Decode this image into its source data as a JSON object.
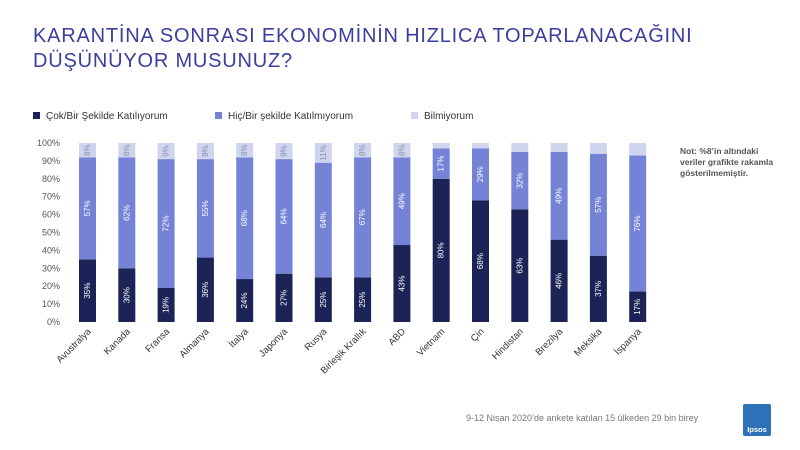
{
  "header": {
    "title_line1": "KARANTİNA SONRASI EKONOMİNİN HIZLICA TOPARLANACAĞINI",
    "title_line2": "DÜŞÜNÜYOR MUSUNUZ?"
  },
  "note": "Not: %8’in altındaki veriler grafikte rakamla gösterilmemiştir.",
  "source": "9-12 Nisan 2020’de ankete katılan 15 ülkeden 29 bin birey",
  "logo": {
    "text": "Ipsos",
    "color": "#2f71b8"
  },
  "chart_data": {
    "type": "bar",
    "stacked": true,
    "categories": [
      "Avustralya",
      "Kanada",
      "Fransa",
      "Almanya",
      "İtalya",
      "Japonya",
      "Rusya",
      "Birleşik Krallık",
      "ABD",
      "Vietnam",
      "Çin",
      "Hindistan",
      "Brezilya",
      "Meksika",
      "İspanya"
    ],
    "series": [
      {
        "name": "Çok/Bir Şekilde Katılıyorum",
        "color": "#1b2357",
        "values": [
          35,
          30,
          19,
          36,
          24,
          27,
          25,
          25,
          43,
          80,
          68,
          63,
          46,
          37,
          17
        ],
        "labels": [
          "35%",
          "30%",
          "19%",
          "36%",
          "24%",
          "27%",
          "25%",
          "25%",
          "43%",
          "80%",
          "68%",
          "63%",
          "46%",
          "37%",
          "17%"
        ]
      },
      {
        "name": "Hiç/Bir şekilde Katılmıyorum",
        "color": "#7483d6",
        "values": [
          57,
          62,
          72,
          55,
          68,
          64,
          64,
          67,
          49,
          17,
          29,
          32,
          49,
          57,
          76
        ],
        "labels": [
          "57%",
          "62%",
          "72%",
          "55%",
          "68%",
          "64%",
          "64%",
          "67%",
          "49%",
          "17%",
          "29%",
          "32%",
          "49%",
          "57%",
          "76%"
        ]
      },
      {
        "name": "Bilmiyorum",
        "color": "#d0d5ef",
        "values": [
          8,
          8,
          9,
          9,
          8,
          9,
          11,
          8,
          8,
          3,
          3,
          5,
          5,
          6,
          7
        ],
        "labels": [
          "8%",
          "8%",
          "9%",
          "9%",
          "8%",
          "9%",
          "11%",
          "8%",
          "8%",
          "",
          "",
          "",
          "",
          "",
          ""
        ]
      }
    ],
    "y_ticks": [
      "0%",
      "10%",
      "20%",
      "30%",
      "40%",
      "50%",
      "60%",
      "70%",
      "80%",
      "90%",
      "100%"
    ],
    "ylim": [
      0,
      100
    ],
    "legend_position": "top-left",
    "grid": false
  }
}
